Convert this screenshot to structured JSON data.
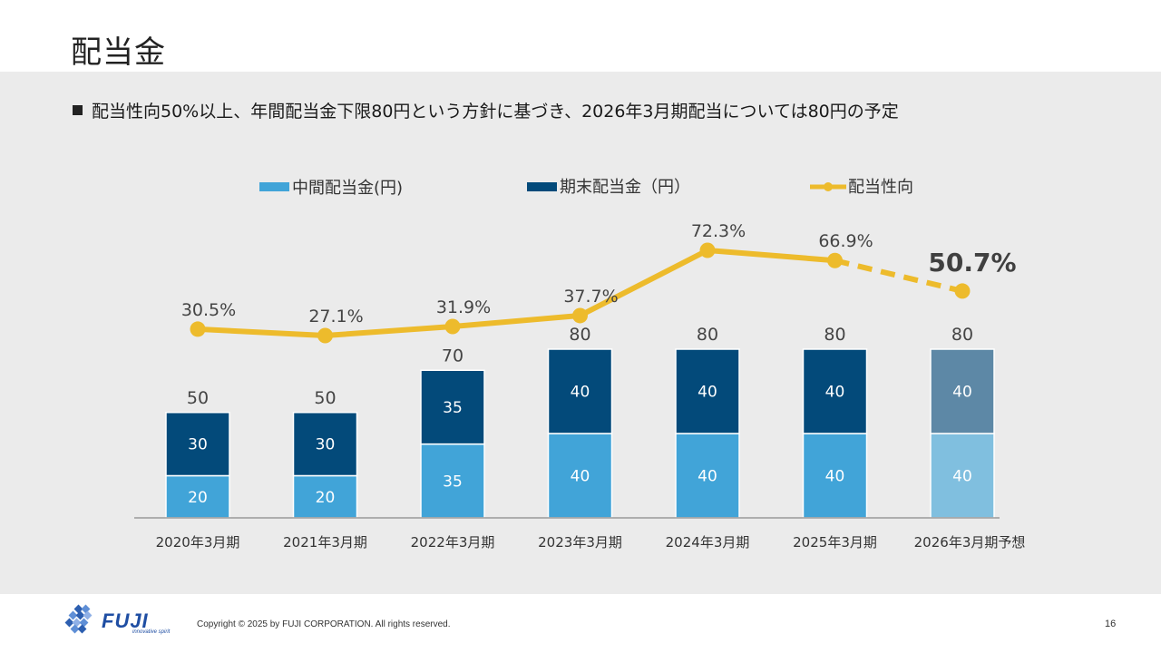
{
  "page": {
    "title": "配当金",
    "bullet": "配当性向50%以上、年間配当金下限80円という方針に基づき、2026年3月期配当については80円の予定"
  },
  "colors": {
    "interim": "#41a4d8",
    "year_end": "#034a7a",
    "interim_forecast": "#80bfdf",
    "year_end_forecast": "#5d88a6",
    "payout": "#edbb2c"
  },
  "chart_data": {
    "type": "bar",
    "stacked": true,
    "categories": [
      "2020年3月期",
      "2021年3月期",
      "2022年3月期",
      "2023年3月期",
      "2024年3月期",
      "2025年3月期",
      "2026年3月期予想"
    ],
    "series": [
      {
        "name": "中間配当金(円)",
        "values": [
          20,
          20,
          35,
          40,
          40,
          40,
          40
        ]
      },
      {
        "name": "期末配当金（円）",
        "values": [
          30,
          30,
          35,
          40,
          40,
          40,
          40
        ]
      }
    ],
    "totals": [
      50,
      50,
      70,
      80,
      80,
      80,
      80
    ],
    "line_series": {
      "name": "配当性向",
      "values": [
        30.5,
        27.1,
        31.9,
        37.7,
        72.3,
        66.9,
        50.7
      ],
      "labels": [
        "30.5%",
        "27.1%",
        "31.9%",
        "37.7%",
        "72.3%",
        "66.9%",
        "50.7%"
      ],
      "forecast_from_index": 5
    },
    "forecast_index": 6,
    "legend_position": "top",
    "grid": false
  },
  "footer": {
    "logo_text": "FUJI",
    "logo_tagline": "innovative spirit",
    "copyright": "Copyright © 2025 by FUJI CORPORATION. All rights reserved.",
    "page_number": "16"
  }
}
